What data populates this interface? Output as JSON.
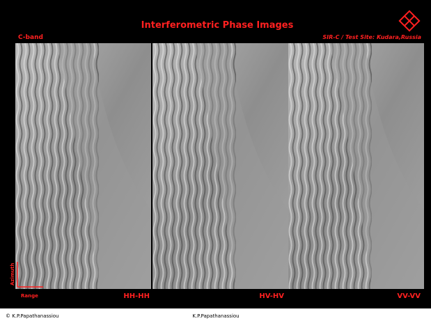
{
  "header": {
    "title": "Interferometric Phase Images",
    "band": "C-band",
    "site": "SIR-C  / Test Site: Kudara,Russia"
  },
  "panels": [
    {
      "label": "HH-HH"
    },
    {
      "label": "HV-HV"
    },
    {
      "label": "VV-VV"
    }
  ],
  "axes": {
    "azimuth": "Azimuth",
    "range": "Range"
  },
  "footer": {
    "copyright": "© K.P.Papathanassiou",
    "center": "K.P.Papathanassiou"
  }
}
